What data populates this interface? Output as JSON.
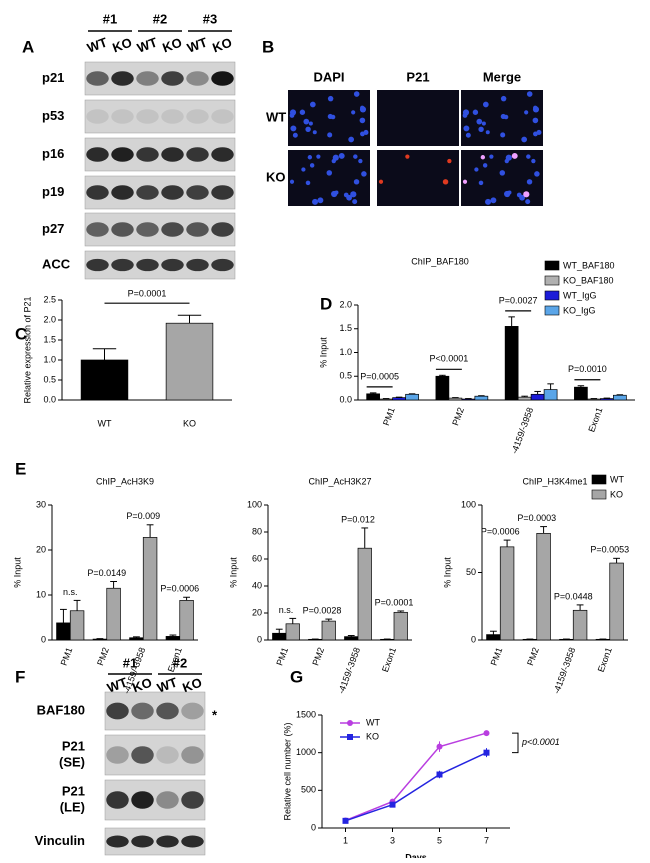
{
  "panel_labels": [
    "A",
    "B",
    "C",
    "D",
    "E",
    "F",
    "G"
  ],
  "blot_a": {
    "groups": [
      "#1",
      "#2",
      "#3"
    ],
    "lanes": [
      "WT",
      "KO",
      "WT",
      "KO",
      "WT",
      "KO"
    ],
    "rows": [
      "p21",
      "p53",
      "p16",
      "p19",
      "p27",
      "ACC"
    ]
  },
  "micrographs": {
    "columns": [
      "DAPI",
      "P21",
      "Merge"
    ],
    "rows": [
      "WT",
      "KO"
    ]
  },
  "blot_f": {
    "groups": [
      "#1",
      "#2"
    ],
    "lanes": [
      "WT",
      "KO",
      "WT",
      "KO"
    ],
    "rows": [
      [
        "BAF180"
      ],
      [
        "P21",
        "(SE)"
      ],
      [
        "P21",
        "(LE)"
      ],
      [
        "Vinculin"
      ]
    ],
    "marker": "*"
  },
  "chart_data": [
    {
      "type": "bar",
      "ylabel": "Relative expression of P21",
      "categories": [
        "WT",
        "KO"
      ],
      "values": [
        1.0,
        1.92
      ],
      "errors": [
        0.28,
        0.2
      ],
      "colors": [
        "#000000",
        "#a6a6a6"
      ],
      "ylim": [
        0,
        2.5
      ],
      "yticks": [
        {
          "value": 0,
          "label": "0.0"
        },
        0.5,
        {
          "value": 1,
          "label": "1.0"
        },
        1.5,
        {
          "value": 2,
          "label": "2.0"
        },
        2.5
      ],
      "annotation": "P=0.0001"
    },
    {
      "type": "bar",
      "title": "ChIP_BAF180",
      "ylabel": "% Input",
      "categories": [
        "PM1",
        "PM2",
        "-4159/-3958",
        "Exon1"
      ],
      "series": [
        {
          "name": "WT_BAF180",
          "color": "#000000",
          "values": [
            0.13,
            0.5,
            1.55,
            0.27
          ],
          "errors": [
            0.02,
            0.02,
            0.2,
            0.03
          ]
        },
        {
          "name": "KO_BAF180",
          "color": "#b0b0b0",
          "values": [
            0.02,
            0.04,
            0.06,
            0.02
          ],
          "errors": [
            0.01,
            0.01,
            0.02,
            0.01
          ]
        },
        {
          "name": "WT_IgG",
          "color": "#1c1cd8",
          "values": [
            0.05,
            0.02,
            0.12,
            0.03
          ],
          "errors": [
            0.01,
            0.01,
            0.06,
            0.01
          ]
        },
        {
          "name": "KO_IgG",
          "color": "#5aa5e8",
          "values": [
            0.12,
            0.08,
            0.22,
            0.1
          ],
          "errors": [
            0.01,
            0.01,
            0.12,
            0.01
          ]
        }
      ],
      "ylim": [
        0,
        2
      ],
      "yticks": [
        {
          "value": 0,
          "label": "0.0"
        },
        0.5,
        {
          "value": 1,
          "label": "1.0"
        },
        1.5,
        {
          "value": 2,
          "label": "2.0"
        }
      ],
      "annotations": [
        "P=0.0005",
        "P<0.0001",
        "P=0.0027",
        "P=0.0010"
      ],
      "legend": "upper right"
    },
    {
      "type": "bar",
      "title": "ChIP_AcH3K9",
      "ylabel": "% Input",
      "categories": [
        "PM1",
        "PM2",
        "-4159/-3958",
        "Exon1"
      ],
      "series": [
        {
          "color": "#000000",
          "values": [
            3.8,
            0.2,
            0.5,
            0.8
          ],
          "errors": [
            3,
            0.1,
            0.2,
            0.3
          ]
        },
        {
          "color": "#a6a6a6",
          "values": [
            6.5,
            11.5,
            22.8,
            8.8
          ],
          "errors": [
            2.3,
            1.5,
            2.8,
            0.7
          ]
        }
      ],
      "ylim": [
        0,
        30
      ],
      "yticks": [
        0,
        10,
        20,
        30
      ],
      "annotations": [
        "n.s.",
        "P=0.0149",
        "P=0.009",
        "P=0.0006"
      ]
    },
    {
      "type": "bar",
      "title": "ChIP_AcH3K27",
      "ylabel": "% Input",
      "categories": [
        "PM1",
        "PM2",
        "-4159/-3958",
        "Exon1"
      ],
      "series": [
        {
          "color": "#000000",
          "values": [
            5,
            0.5,
            2.5,
            0.5
          ],
          "errors": [
            3,
            0.2,
            0.8,
            0.2
          ]
        },
        {
          "color": "#a6a6a6",
          "values": [
            12,
            14,
            68,
            20.5
          ],
          "errors": [
            4,
            1.5,
            15,
            1
          ]
        }
      ],
      "ylim": [
        0,
        100
      ],
      "yticks": [
        0,
        20,
        40,
        60,
        80,
        100
      ],
      "annotations": [
        "n.s.",
        "P=0.0028",
        "P=0.012",
        "P=0.0001"
      ]
    },
    {
      "type": "bar",
      "title": "ChIP_H3K4me1",
      "ylabel": "% Input",
      "categories": [
        "PM1",
        "PM2",
        "-4159/-3958",
        "Exon1"
      ],
      "series": [
        {
          "name": "WT",
          "color": "#000000",
          "values": [
            4,
            0.5,
            0.5,
            0.5
          ],
          "errors": [
            2.5,
            0.2,
            0.2,
            0.2
          ]
        },
        {
          "name": "KO",
          "color": "#a6a6a6",
          "values": [
            69,
            79,
            22,
            57
          ],
          "errors": [
            5,
            5,
            4,
            3.5
          ]
        }
      ],
      "ylim": [
        0,
        100
      ],
      "yticks": [
        0,
        50,
        100
      ],
      "annotations": [
        "P=0.0006",
        "P=0.0003",
        "P=0.0448",
        "P=0.0053"
      ],
      "legend": "upper right"
    },
    {
      "type": "line",
      "xlabel": "Days",
      "ylabel": "Relative cell number (%)",
      "x": [
        1,
        3,
        5,
        7
      ],
      "series": [
        {
          "name": "WT",
          "color": "#b93ee0",
          "values": [
            100,
            350,
            1080,
            1260
          ],
          "errors": [
            10,
            20,
            70,
            20
          ]
        },
        {
          "name": "KO",
          "color": "#2424e0",
          "values": [
            95,
            310,
            710,
            1000
          ],
          "errors": [
            10,
            20,
            50,
            60
          ]
        }
      ],
      "xlim": [
        0,
        8
      ],
      "xticks": [
        1,
        3,
        5,
        7
      ],
      "ylim": [
        0,
        1500
      ],
      "yticks": [
        0,
        500,
        1000,
        1500
      ],
      "legend": "upper left",
      "annotation": "p<0.0001"
    }
  ]
}
